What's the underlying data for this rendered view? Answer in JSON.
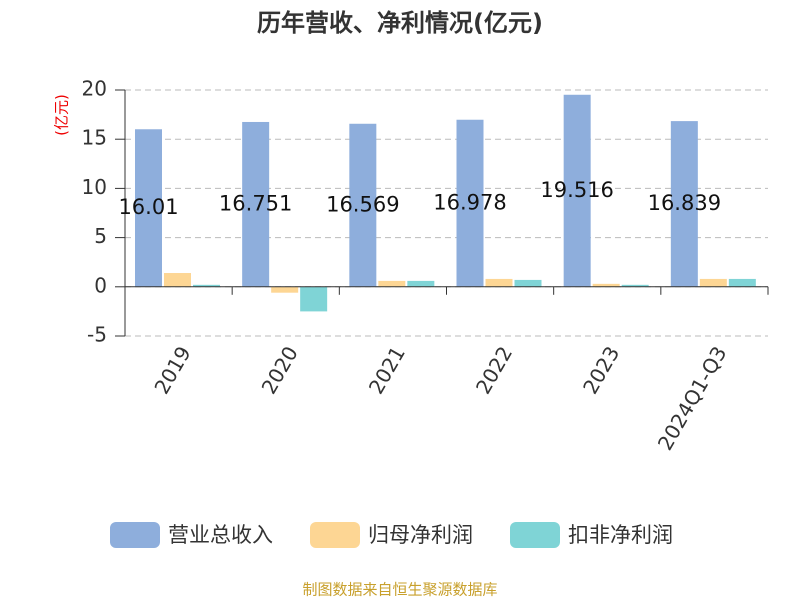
{
  "chart_data": {
    "type": "bar",
    "title": "历年营收、净利情况(亿元)",
    "y_label": "(亿元)",
    "source": "制图数据来自恒生聚源数据库",
    "categories": [
      "2019",
      "2020",
      "2021",
      "2022",
      "2023",
      "2024Q1-Q3"
    ],
    "series": [
      {
        "name": "营业总收入",
        "color": "#8eaedc",
        "values": [
          16.01,
          16.751,
          16.569,
          16.978,
          19.516,
          16.839
        ]
      },
      {
        "name": "归母净利润",
        "color": "#fdd694",
        "values": [
          1.4,
          -0.6,
          0.6,
          0.8,
          0.3,
          0.8
        ]
      },
      {
        "name": "扣非净利润",
        "color": "#7fd4d6",
        "values": [
          0.2,
          -2.5,
          0.6,
          0.7,
          0.2,
          0.8
        ]
      }
    ],
    "ylim": [
      -5,
      20
    ],
    "yticks": [
      -5,
      0,
      5,
      10,
      15,
      20
    ],
    "grid": true
  }
}
